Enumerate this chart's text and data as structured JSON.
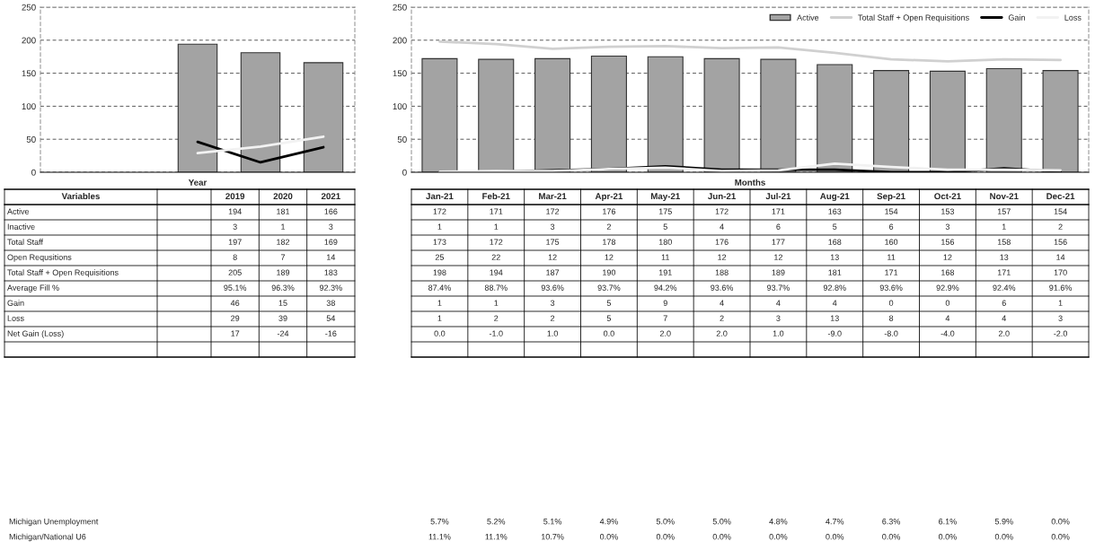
{
  "chart_data": [
    {
      "type": "bar",
      "xlabel": "Year",
      "categories": [
        null,
        null,
        null,
        null,
        null
      ],
      "ylim": [
        0,
        250
      ],
      "yticks": [
        0,
        50,
        100,
        150,
        200,
        250
      ],
      "grid": "y",
      "tick_labels": "y",
      "legend": false,
      "series": [
        {
          "type": "bar",
          "color": "#a3a3a3",
          "values": [
            null,
            null,
            194,
            181,
            166
          ]
        },
        {
          "type": "line",
          "color": "#000000",
          "values": [
            null,
            null,
            46,
            15,
            38
          ]
        },
        {
          "type": "line",
          "color": "#f2f2f2",
          "values": [
            null,
            null,
            29,
            39,
            54
          ]
        }
      ]
    },
    {
      "type": "bar",
      "xlabel": "Months",
      "categories": [
        null,
        null,
        null,
        null,
        null,
        null,
        null,
        null,
        null,
        null,
        null,
        null
      ],
      "ylim": [
        0,
        250
      ],
      "yticks": [
        0,
        50,
        100,
        150,
        200,
        250
      ],
      "grid": "y",
      "tick_labels": "y",
      "legend": "top right",
      "series": [
        {
          "type": "bar",
          "name": "Active",
          "color": "#a3a3a3",
          "values": [
            172,
            171,
            172,
            176,
            175,
            172,
            171,
            163,
            154,
            153,
            157,
            154
          ]
        },
        {
          "type": "line",
          "name": "Total Staff + Open Requisitions",
          "color": "#d0d0d0",
          "values": [
            198,
            194,
            187,
            190,
            191,
            188,
            189,
            181,
            171,
            168,
            171,
            170
          ]
        },
        {
          "type": "line",
          "name": "Gain",
          "color": "#000000",
          "values": [
            1,
            1,
            3,
            5,
            9,
            4,
            4,
            4,
            0,
            0,
            6,
            1
          ]
        },
        {
          "type": "line",
          "name": "Loss",
          "color": "#f2f2f2",
          "values": [
            1,
            2,
            2,
            5,
            7,
            2,
            3,
            13,
            8,
            4,
            4,
            3
          ]
        }
      ]
    },
    {
      "type": "other",
      "ylabel": "Variables",
      "categories": [
        "2019",
        "2020",
        "2021"
      ],
      "series": [
        {
          "name": "Active",
          "values": [
            194,
            181,
            166
          ],
          "value_labels": [
            "194",
            "181",
            "166"
          ]
        },
        {
          "name": "Inactive",
          "values": [
            3,
            1,
            3
          ],
          "value_labels": [
            "3",
            "1",
            "3"
          ]
        },
        {
          "name": "Total Staff",
          "values": [
            197,
            182,
            169
          ],
          "value_labels": [
            "197",
            "182",
            "169"
          ]
        },
        {
          "name": "Open Requsitions",
          "values": [
            8,
            7,
            14
          ],
          "value_labels": [
            "8",
            "7",
            "14"
          ]
        },
        {
          "name": "Total Staff + Open Requisitions",
          "values": [
            205,
            189,
            183
          ],
          "value_labels": [
            "205",
            "189",
            "183"
          ]
        },
        {
          "name": "Average Fill %",
          "values": [
            95.1,
            96.3,
            92.3
          ],
          "value_labels": [
            "95.1%",
            "96.3%",
            "92.3%"
          ]
        },
        {
          "name": "Gain",
          "values": [
            46,
            15,
            38
          ],
          "value_labels": [
            "46",
            "15",
            "38"
          ]
        },
        {
          "name": "Loss",
          "values": [
            29,
            39,
            54
          ],
          "value_labels": [
            "29",
            "39",
            "54"
          ]
        },
        {
          "name": "Net Gain (Loss)",
          "values": [
            17,
            -24,
            -16
          ],
          "value_labels": [
            "17",
            "-24",
            "-16"
          ]
        }
      ]
    },
    {
      "type": "other",
      "categories": [
        "Jan-21",
        "Feb-21",
        "Mar-21",
        "Apr-21",
        "May-21",
        "Jun-21",
        "Jul-21",
        "Aug-21",
        "Sep-21",
        "Oct-21",
        "Nov-21",
        "Dec-21"
      ],
      "series": [
        {
          "values": [
            172,
            171,
            172,
            176,
            175,
            172,
            171,
            163,
            154,
            153,
            157,
            154
          ],
          "value_labels": [
            "172",
            "171",
            "172",
            "176",
            "175",
            "172",
            "171",
            "163",
            "154",
            "153",
            "157",
            "154"
          ]
        },
        {
          "values": [
            1,
            1,
            3,
            2,
            5,
            4,
            6,
            5,
            6,
            3,
            1,
            2
          ],
          "value_labels": [
            "1",
            "1",
            "3",
            "2",
            "5",
            "4",
            "6",
            "5",
            "6",
            "3",
            "1",
            "2"
          ]
        },
        {
          "values": [
            173,
            172,
            175,
            178,
            180,
            176,
            177,
            168,
            160,
            156,
            158,
            156
          ],
          "value_labels": [
            "173",
            "172",
            "175",
            "178",
            "180",
            "176",
            "177",
            "168",
            "160",
            "156",
            "158",
            "156"
          ]
        },
        {
          "values": [
            25,
            22,
            12,
            12,
            11,
            12,
            12,
            13,
            11,
            12,
            13,
            14
          ],
          "value_labels": [
            "25",
            "22",
            "12",
            "12",
            "11",
            "12",
            "12",
            "13",
            "11",
            "12",
            "13",
            "14"
          ]
        },
        {
          "values": [
            198,
            194,
            187,
            190,
            191,
            188,
            189,
            181,
            171,
            168,
            171,
            170
          ],
          "value_labels": [
            "198",
            "194",
            "187",
            "190",
            "191",
            "188",
            "189",
            "181",
            "171",
            "168",
            "171",
            "170"
          ]
        },
        {
          "values": [
            87.4,
            88.7,
            93.6,
            93.7,
            94.2,
            93.6,
            93.7,
            92.8,
            93.6,
            92.9,
            92.4,
            91.6
          ],
          "value_labels": [
            "87.4%",
            "88.7%",
            "93.6%",
            "93.7%",
            "94.2%",
            "93.6%",
            "93.7%",
            "92.8%",
            "93.6%",
            "92.9%",
            "92.4%",
            "91.6%"
          ]
        },
        {
          "values": [
            1,
            1,
            3,
            5,
            9,
            4,
            4,
            4,
            0,
            0,
            6,
            1
          ],
          "value_labels": [
            "1",
            "1",
            "3",
            "5",
            "9",
            "4",
            "4",
            "4",
            "0",
            "0",
            "6",
            "1"
          ]
        },
        {
          "values": [
            1,
            2,
            2,
            5,
            7,
            2,
            3,
            13,
            8,
            4,
            4,
            3
          ],
          "value_labels": [
            "1",
            "2",
            "2",
            "5",
            "7",
            "2",
            "3",
            "13",
            "8",
            "4",
            "4",
            "3"
          ]
        },
        {
          "values": [
            0.0,
            -1.0,
            1.0,
            0.0,
            2.0,
            2.0,
            1.0,
            -9.0,
            -8.0,
            -4.0,
            2.0,
            -2.0
          ],
          "value_labels": [
            "0.0",
            "-1.0",
            "1.0",
            "0.0",
            "2.0",
            "2.0",
            "1.0",
            "-9.0",
            "-8.0",
            "-4.0",
            "2.0",
            "-2.0"
          ]
        },
        {
          "name": "Michigan Unemployment",
          "values": [
            5.7,
            5.2,
            5.1,
            4.9,
            5.0,
            5.0,
            4.8,
            4.7,
            6.3,
            6.1,
            5.9,
            0.0
          ],
          "value_labels": [
            "5.7%",
            "5.2%",
            "5.1%",
            "4.9%",
            "5.0%",
            "5.0%",
            "4.8%",
            "4.7%",
            "6.3%",
            "6.1%",
            "5.9%",
            "0.0%"
          ]
        },
        {
          "name": "Michigan/National U6",
          "values": [
            11.1,
            11.1,
            10.7,
            0.0,
            0.0,
            0.0,
            0.0,
            0.0,
            0.0,
            0.0,
            0.0,
            0.0
          ],
          "value_labels": [
            "11.1%",
            "11.1%",
            "10.7%",
            "0.0%",
            "0.0%",
            "0.0%",
            "0.0%",
            "0.0%",
            "0.0%",
            "0.0%",
            "0.0%",
            "0.0%"
          ]
        }
      ]
    }
  ]
}
